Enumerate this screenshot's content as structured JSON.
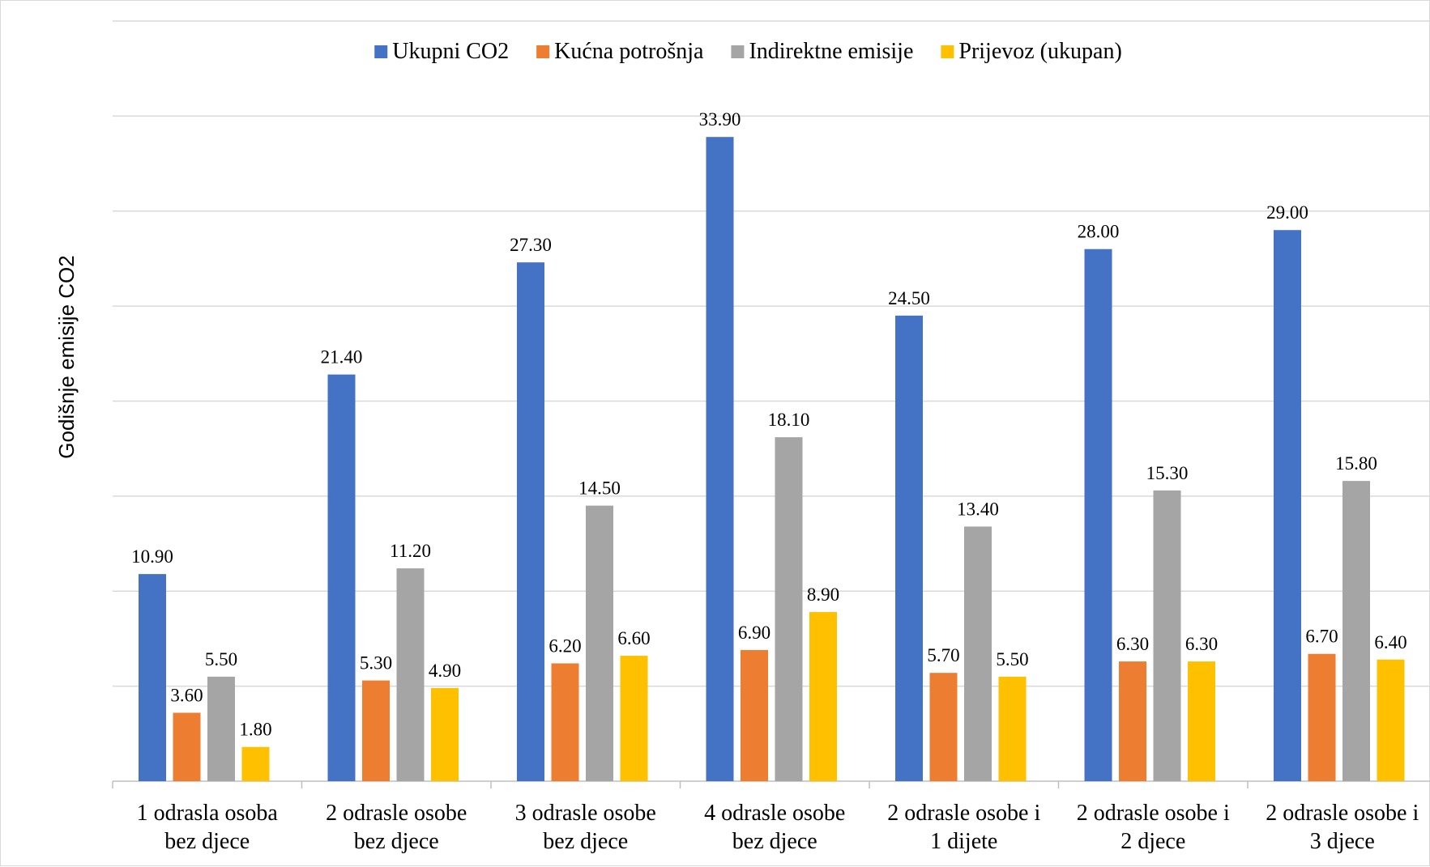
{
  "chart_data": {
    "type": "bar",
    "title": "",
    "xlabel": "",
    "ylabel": "Godišnje emisije CO2",
    "ylim": [
      0,
      40
    ],
    "grid": true,
    "legend_position": "top",
    "categories": [
      [
        "1 odrasla osoba",
        "bez djece"
      ],
      [
        "2 odrasle osobe",
        "bez djece"
      ],
      [
        "3 odrasle osobe",
        "bez djece"
      ],
      [
        "4 odrasle osobe",
        "bez djece"
      ],
      [
        "2 odrasle osobe i",
        "1 dijete"
      ],
      [
        "2 odrasle osobe i",
        "2 djece"
      ],
      [
        "2 odrasle osobe i",
        "3 djece"
      ]
    ],
    "series": [
      {
        "name": "Ukupni CO2",
        "color": "#4472C4",
        "values": [
          10.9,
          21.4,
          27.3,
          33.9,
          24.5,
          28.0,
          29.0
        ]
      },
      {
        "name": "Kućna potrošnja",
        "color": "#ED7D31",
        "values": [
          3.6,
          5.3,
          6.2,
          6.9,
          5.7,
          6.3,
          6.7
        ]
      },
      {
        "name": "Indirektne emisije",
        "color": "#A5A5A5",
        "values": [
          5.5,
          11.2,
          14.5,
          18.1,
          13.4,
          15.3,
          15.8
        ]
      },
      {
        "name": "Prijevoz (ukupan)",
        "color": "#FFC000",
        "values": [
          1.8,
          4.9,
          6.6,
          8.9,
          5.5,
          6.3,
          6.4
        ]
      }
    ],
    "value_format": "0.00"
  }
}
